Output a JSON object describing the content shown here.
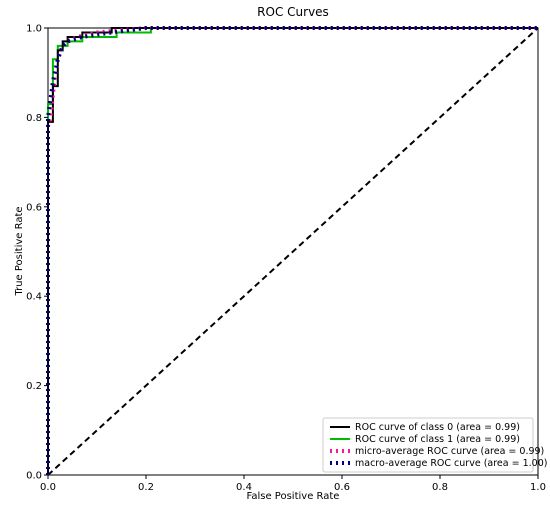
{
  "chart_data": {
    "type": "line",
    "title": "ROC Curves",
    "xlabel": "False Positive Rate",
    "ylabel": "True Positive Rate",
    "xlim": [
      0.0,
      1.0
    ],
    "ylim": [
      0.0,
      1.0
    ],
    "xticks": [
      "0.0",
      "0.2",
      "0.4",
      "0.6",
      "0.8",
      "1.0"
    ],
    "yticks": [
      "0.0",
      "0.2",
      "0.4",
      "0.6",
      "0.8",
      "1.0"
    ],
    "grid": false,
    "legend_position": "bottom-right",
    "series": [
      {
        "name": "ROC curve of class 0 (area = 0.99)",
        "color": "#000000",
        "style": "solid",
        "points": [
          [
            0,
            0
          ],
          [
            0,
            0.79
          ],
          [
            0.01,
            0.79
          ],
          [
            0.01,
            0.87
          ],
          [
            0.02,
            0.87
          ],
          [
            0.02,
            0.95
          ],
          [
            0.03,
            0.95
          ],
          [
            0.03,
            0.97
          ],
          [
            0.04,
            0.97
          ],
          [
            0.04,
            0.98
          ],
          [
            0.07,
            0.98
          ],
          [
            0.07,
            0.99
          ],
          [
            0.13,
            0.99
          ],
          [
            0.13,
            1.0
          ],
          [
            1.0,
            1.0
          ]
        ]
      },
      {
        "name": "ROC curve of class 1 (area = 0.99)",
        "color": "#00bb00",
        "style": "solid",
        "points": [
          [
            0,
            0
          ],
          [
            0,
            0.83
          ],
          [
            0.01,
            0.83
          ],
          [
            0.01,
            0.93
          ],
          [
            0.02,
            0.93
          ],
          [
            0.02,
            0.96
          ],
          [
            0.04,
            0.96
          ],
          [
            0.04,
            0.97
          ],
          [
            0.07,
            0.97
          ],
          [
            0.07,
            0.98
          ],
          [
            0.14,
            0.98
          ],
          [
            0.14,
            0.99
          ],
          [
            0.21,
            0.99
          ],
          [
            0.21,
            1.0
          ],
          [
            1.0,
            1.0
          ]
        ]
      },
      {
        "name": "micro-average ROC curve (area = 0.99)",
        "color": "#ff1493",
        "style": "dotted",
        "points": [
          [
            0,
            0
          ],
          [
            0,
            0.78
          ],
          [
            0.005,
            0.8
          ],
          [
            0.01,
            0.85
          ],
          [
            0.015,
            0.9
          ],
          [
            0.02,
            0.93
          ],
          [
            0.03,
            0.96
          ],
          [
            0.04,
            0.97
          ],
          [
            0.06,
            0.98
          ],
          [
            0.1,
            0.99
          ],
          [
            0.2,
            1.0
          ],
          [
            1.0,
            1.0
          ]
        ]
      },
      {
        "name": "macro-average ROC curve (area = 1.00)",
        "color": "#000080",
        "style": "dotted",
        "points": [
          [
            0,
            0
          ],
          [
            0,
            0.8
          ],
          [
            0.005,
            0.84
          ],
          [
            0.01,
            0.88
          ],
          [
            0.02,
            0.93
          ],
          [
            0.03,
            0.96
          ],
          [
            0.04,
            0.97
          ],
          [
            0.07,
            0.98
          ],
          [
            0.13,
            0.99
          ],
          [
            0.2,
            1.0
          ],
          [
            1.0,
            1.0
          ]
        ]
      },
      {
        "name": "",
        "color": "#000000",
        "style": "dashed",
        "points": [
          [
            0,
            0
          ],
          [
            1,
            1
          ]
        ]
      }
    ]
  }
}
